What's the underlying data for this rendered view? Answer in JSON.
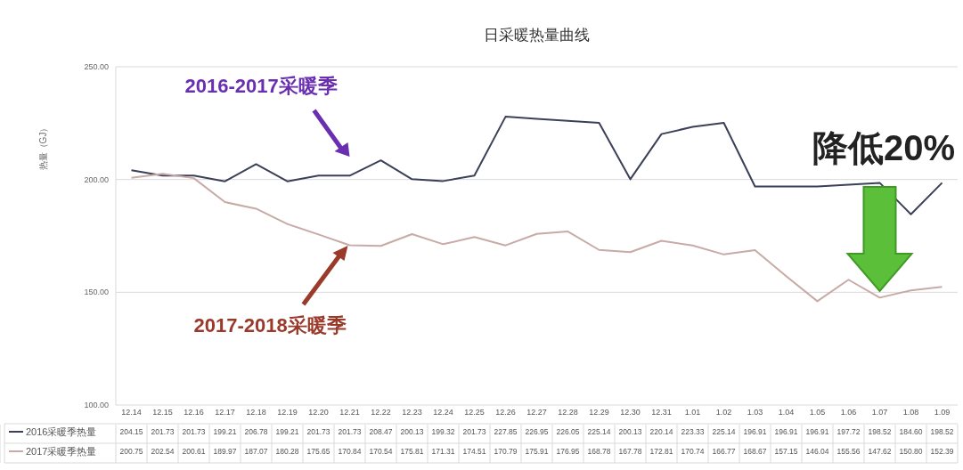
{
  "chart_data": {
    "type": "line",
    "title": "日采暖热量曲线",
    "ylabel": "热量（GJ）",
    "categories": [
      "12.14",
      "12.15",
      "12.16",
      "12.17",
      "12.18",
      "12.19",
      "12.20",
      "12.21",
      "12.22",
      "12.23",
      "12.24",
      "12.25",
      "12.26",
      "12.27",
      "12.28",
      "12.29",
      "12.30",
      "12.31",
      "1.01",
      "1.02",
      "1.03",
      "1.04",
      "1.05",
      "1.06",
      "1.07",
      "1.08",
      "1.09"
    ],
    "series": [
      {
        "name": "2016采暖季热量",
        "color": "#3b4058",
        "values": [
          204.15,
          201.73,
          201.73,
          199.21,
          206.78,
          199.21,
          201.73,
          201.73,
          208.47,
          200.13,
          199.32,
          201.73,
          227.85,
          226.95,
          226.05,
          225.14,
          200.13,
          220.14,
          223.33,
          225.14,
          196.91,
          196.91,
          196.91,
          197.72,
          198.52,
          184.6,
          198.52
        ],
        "value_labels": [
          "204.15",
          "201.73",
          "201.73",
          "199.21",
          "206.78",
          "199.21",
          "201.73",
          "201.73",
          "208.47",
          "200.13",
          "199.32",
          "201.73",
          "227.85",
          "226.95",
          "226.05",
          "225.14",
          "200.13",
          "220.14",
          "223.33",
          "225.14",
          "196.91",
          "196.91",
          "196.91",
          "197.72",
          "198.52",
          "184.60",
          "198.52"
        ]
      },
      {
        "name": "2017采暖季热量",
        "color": "#c8aaa6",
        "values": [
          200.75,
          202.54,
          200.61,
          189.97,
          187.07,
          180.28,
          175.65,
          170.84,
          170.54,
          175.81,
          171.31,
          174.51,
          170.79,
          175.91,
          176.95,
          168.78,
          167.78,
          172.81,
          170.74,
          166.77,
          168.67,
          157.15,
          146.04,
          155.56,
          147.62,
          150.8,
          152.39
        ],
        "value_labels": [
          "200.75",
          "202.54",
          "200.61",
          "189.97",
          "187.07",
          "180.28",
          "175.65",
          "170.84",
          "170.54",
          "175.81",
          "171.31",
          "174.51",
          "170.79",
          "175.91",
          "176.95",
          "168.78",
          "167.78",
          "172.81",
          "170.74",
          "166.77",
          "168.67",
          "157.15",
          "146.04",
          "155.56",
          "147.62",
          "150.80",
          "152.39"
        ]
      }
    ],
    "ylim": [
      100,
      250
    ],
    "yticks": [
      {
        "value": 100,
        "label": "100.00"
      },
      {
        "value": 150,
        "label": "150.00"
      },
      {
        "value": 200,
        "label": "200.00"
      },
      {
        "value": 250,
        "label": "250.00"
      }
    ],
    "grid": "y",
    "legend": "bottom",
    "marker": "none",
    "line_style": "solid",
    "data_labels": true,
    "annotations": [
      "2016-2017采暖季",
      "2017-2018采暖季",
      "降低20%"
    ]
  }
}
